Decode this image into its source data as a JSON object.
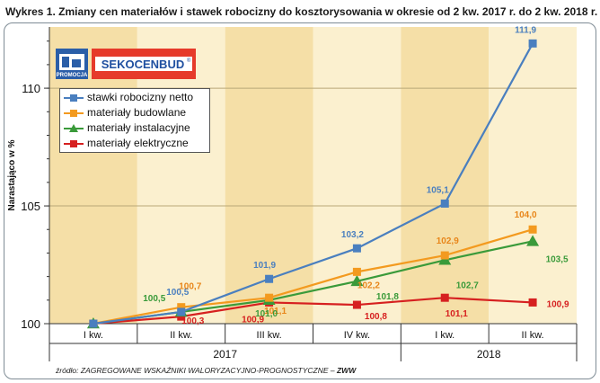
{
  "title": "Wykres 1.  Zmiany cen materiałów i stawek robocizny do kosztorysowania w okresie od 2 kw. 2017 r. do 2 kw. 2018 r.",
  "source": {
    "prefix": "źródło: ZAGREGOWANE WSKAŹNIKI WALORYZACYJNO-PROGNOSTYCZNE – ",
    "bold": "ZWW"
  },
  "logo": {
    "promo_text": "PROMOCJA",
    "brand_text": "SEKOCENBUD",
    "registered": "®"
  },
  "colors": {
    "band_dark": "#f5dfa7",
    "band_light": "#fbf0cf",
    "blue": "#4a7fbf",
    "orange": "#f39a1f",
    "green": "#3a9a3a",
    "red": "#d62020"
  },
  "chart_data": {
    "type": "line",
    "title": "Wykres 1.  Zmiany cen materiałów i stawek robocizny do kosztorysowania w okresie od 2 kw. 2017 r. do 2 kw. 2018 r.",
    "ylabel": "Narastająco w %",
    "xlabel": "",
    "ylim": [
      100,
      112.6
    ],
    "yticks": [
      100,
      105,
      110
    ],
    "x": [
      "I kw.",
      "II kw.",
      "III kw.",
      "IV kw.",
      "I kw.",
      "II kw."
    ],
    "year_groups": [
      {
        "label": "2017",
        "quarters": 4
      },
      {
        "label": "2018",
        "quarters": 2
      }
    ],
    "legend_position": "top-left",
    "series": [
      {
        "name": "stawki robocizny netto",
        "color": "#4a7fbf",
        "marker": "square",
        "values": [
          100,
          100.5,
          101.9,
          103.2,
          105.1,
          111.9
        ],
        "labels": [
          "",
          "100,5",
          "101,9",
          "103,2",
          "105,1",
          "111,9"
        ]
      },
      {
        "name": "materiały budowlane",
        "color": "#f39a1f",
        "marker": "square",
        "values": [
          100,
          100.7,
          101.1,
          102.2,
          102.9,
          104.0
        ],
        "labels": [
          "",
          "100,7",
          "101,1",
          "102,2",
          "102,9",
          "104,0"
        ]
      },
      {
        "name": "materiały instalacyjne",
        "color": "#3a9a3a",
        "marker": "triangle",
        "values": [
          100,
          100.5,
          101.0,
          101.8,
          102.7,
          103.5
        ],
        "labels": [
          "",
          "100,5",
          "101,0",
          "101,8",
          "102,7",
          "103,5"
        ]
      },
      {
        "name": "materiały elektryczne",
        "color": "#d62020",
        "marker": "square",
        "values": [
          100,
          100.3,
          100.9,
          100.8,
          101.1,
          100.9
        ],
        "labels": [
          "",
          "100,3",
          "100,9",
          "100,8",
          "101,1",
          "100,9"
        ]
      }
    ]
  }
}
